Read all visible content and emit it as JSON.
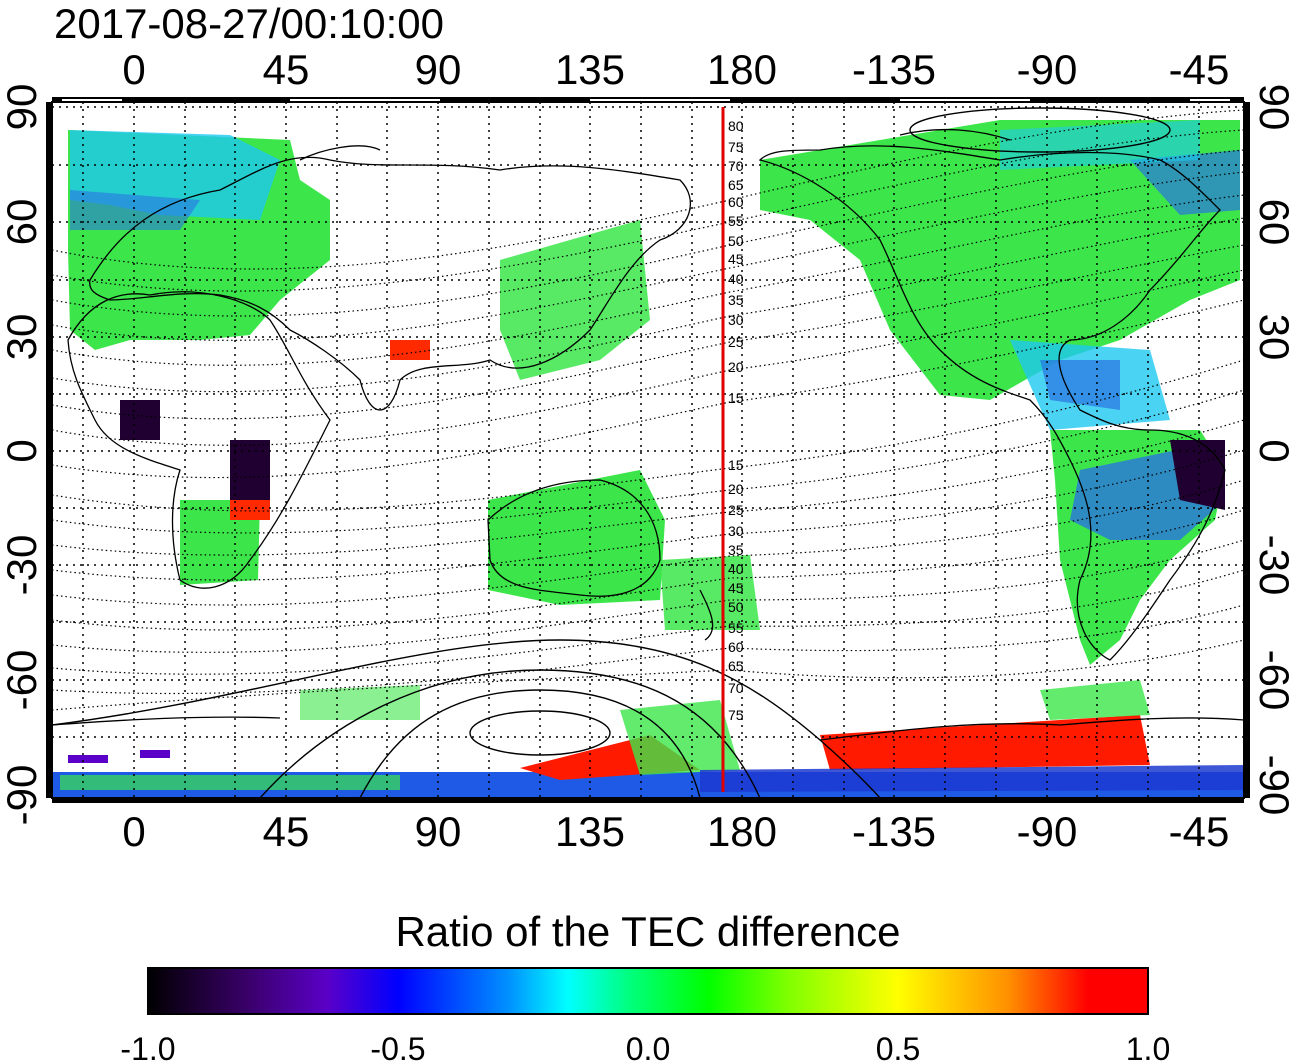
{
  "header": {
    "timestamp": "2017-08-27/00:10:00"
  },
  "axes": {
    "lon_ticks_top": [
      "0",
      "45",
      "90",
      "135",
      "180",
      "-135",
      "-90",
      "-45"
    ],
    "lon_ticks_bottom": [
      "0",
      "45",
      "90",
      "135",
      "180",
      "-135",
      "-90",
      "-45"
    ],
    "lat_ticks_left": [
      "90",
      "60",
      "30",
      "0",
      "-30",
      "-60",
      "-90"
    ],
    "lat_ticks_right": [
      "90",
      "60",
      "30",
      "0",
      "-30",
      "-60",
      "-90"
    ]
  },
  "map": {
    "projection": "equirectangular",
    "lon_range": [
      -20,
      340
    ],
    "lat_range": [
      -92,
      90
    ],
    "grid": "dotted, 15 deg",
    "red_meridian_lon": 177
  },
  "contour_labels": {
    "north": [
      "80",
      "75",
      "70",
      "65",
      "60",
      "55",
      "50",
      "45",
      "40",
      "35",
      "30",
      "25",
      "20",
      "15"
    ],
    "south": [
      "15",
      "20",
      "25",
      "30",
      "35",
      "40",
      "45",
      "50",
      "55",
      "60",
      "65",
      "70",
      "75"
    ]
  },
  "colorbar": {
    "title": "Ratio of the TEC difference",
    "ticks": [
      "-1.0",
      "-0.5",
      "0.0",
      "0.5",
      "1.0"
    ],
    "min": -1.0,
    "max": 1.0,
    "colors": [
      "#000000",
      "#3a006a",
      "#5a00c8",
      "#0000ff",
      "#0090ff",
      "#00ffff",
      "#00ff80",
      "#00ff00",
      "#80ff00",
      "#ffff00",
      "#ff9000",
      "#ff0000",
      "#ff0000"
    ]
  },
  "colors": {
    "frame": "#000000",
    "meridian": "#e00000",
    "land_green": "#3ce64a",
    "ocean": "#ffffff"
  }
}
